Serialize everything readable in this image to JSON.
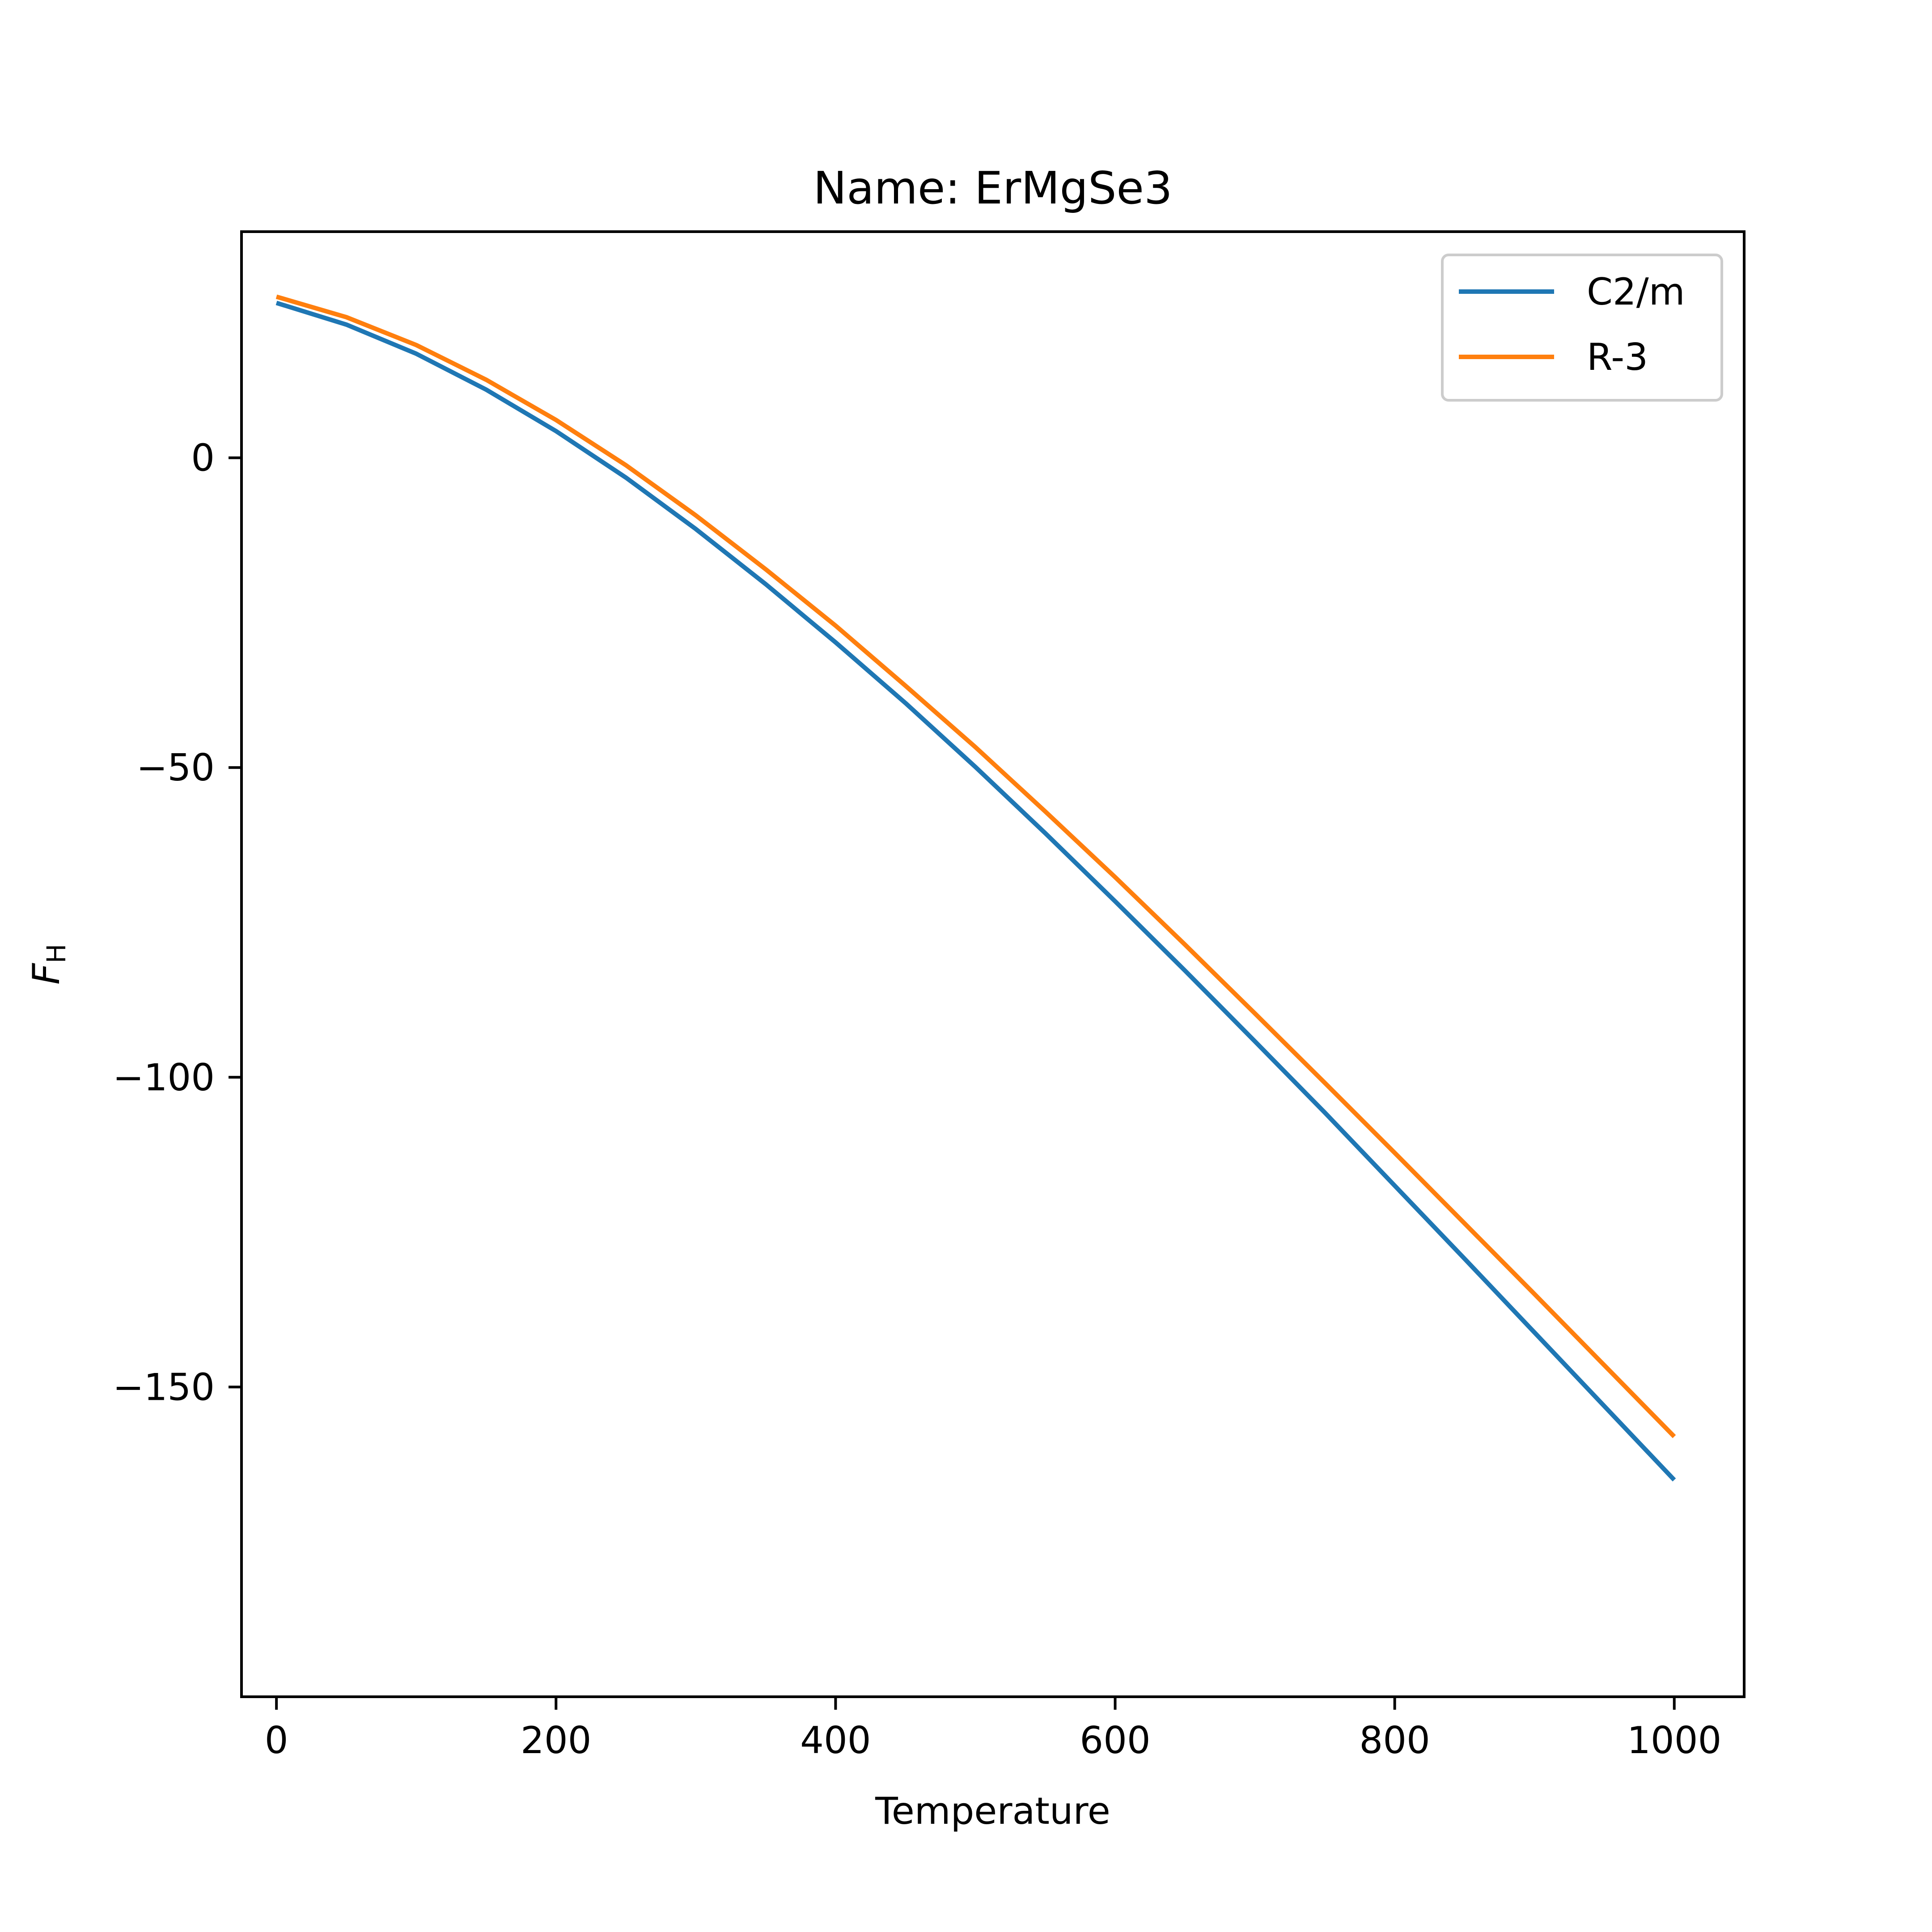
{
  "chart_data": {
    "type": "line",
    "title": "Name: ErMgSe3",
    "xlabel": "Temperature",
    "ylabel_main": "F",
    "ylabel_sub": "H",
    "xlim": [
      -25,
      1050
    ],
    "ylim": [
      -200,
      36.5
    ],
    "xticks": [
      0,
      200,
      400,
      600,
      800,
      1000
    ],
    "yticks": [
      0,
      -50,
      -100,
      -150
    ],
    "xtick_labels": [
      "0",
      "200",
      "400",
      "600",
      "800",
      "1000"
    ],
    "ytick_labels": [
      "0",
      "−50",
      "−100",
      "−150"
    ],
    "grid": false,
    "legend_position": "top-right",
    "x": [
      0,
      50,
      100,
      150,
      200,
      250,
      300,
      350,
      400,
      450,
      500,
      550,
      600,
      650,
      700,
      750,
      800,
      850,
      900,
      950,
      1000
    ],
    "series": [
      {
        "name": "C2/m",
        "color": "#1f77b4",
        "values": [
          25,
          21.5,
          16.8,
          11.0,
          4.3,
          -3.2,
          -11.5,
          -20.4,
          -29.8,
          -39.6,
          -49.9,
          -60.6,
          -71.6,
          -82.8,
          -94.2,
          -105.7,
          -117.5,
          -129.3,
          -141.2,
          -153.1,
          -165.0
        ]
      },
      {
        "name": "R-3",
        "color": "#ff7f0e",
        "values": [
          26,
          22.7,
          18.2,
          12.6,
          6.1,
          -1.2,
          -9.3,
          -18.0,
          -27.1,
          -36.8,
          -46.7,
          -57.1,
          -67.7,
          -78.6,
          -89.7,
          -100.9,
          -112.2,
          -123.6,
          -135.0,
          -146.5,
          -158.0
        ]
      }
    ]
  }
}
